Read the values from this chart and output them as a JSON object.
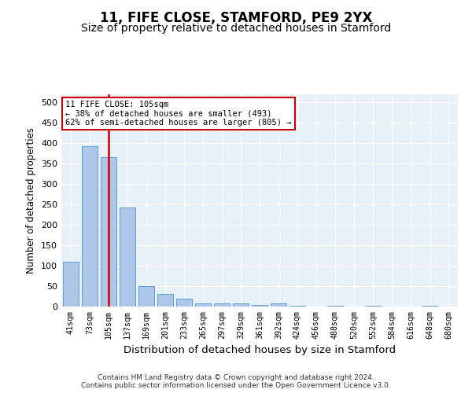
{
  "title1": "11, FIFE CLOSE, STAMFORD, PE9 2YX",
  "title2": "Size of property relative to detached houses in Stamford",
  "xlabel": "Distribution of detached houses by size in Stamford",
  "ylabel": "Number of detached properties",
  "categories": [
    "41sqm",
    "73sqm",
    "105sqm",
    "137sqm",
    "169sqm",
    "201sqm",
    "233sqm",
    "265sqm",
    "297sqm",
    "329sqm",
    "361sqm",
    "392sqm",
    "424sqm",
    "456sqm",
    "488sqm",
    "520sqm",
    "552sqm",
    "584sqm",
    "616sqm",
    "648sqm",
    "680sqm"
  ],
  "values": [
    110,
    393,
    365,
    243,
    50,
    30,
    20,
    8,
    8,
    7,
    4,
    8,
    1,
    0,
    1,
    0,
    1,
    0,
    0,
    1,
    0
  ],
  "bar_color": "#aec6e8",
  "bar_edge_color": "#5a9fd4",
  "vline_color": "#cc0000",
  "annotation_line1": "11 FIFE CLOSE: 105sqm",
  "annotation_line2": "← 38% of detached houses are smaller (493)",
  "annotation_line3": "62% of semi-detached houses are larger (805) →",
  "annotation_box_color": "#ffffff",
  "annotation_box_edge": "#cc0000",
  "bg_color": "#e8f0f8",
  "footer": "Contains HM Land Registry data © Crown copyright and database right 2024.\nContains public sector information licensed under the Open Government Licence v3.0.",
  "ylim_max": 520,
  "yticks": [
    0,
    50,
    100,
    150,
    200,
    250,
    300,
    350,
    400,
    450,
    500
  ],
  "title1_fontsize": 12,
  "title2_fontsize": 10
}
